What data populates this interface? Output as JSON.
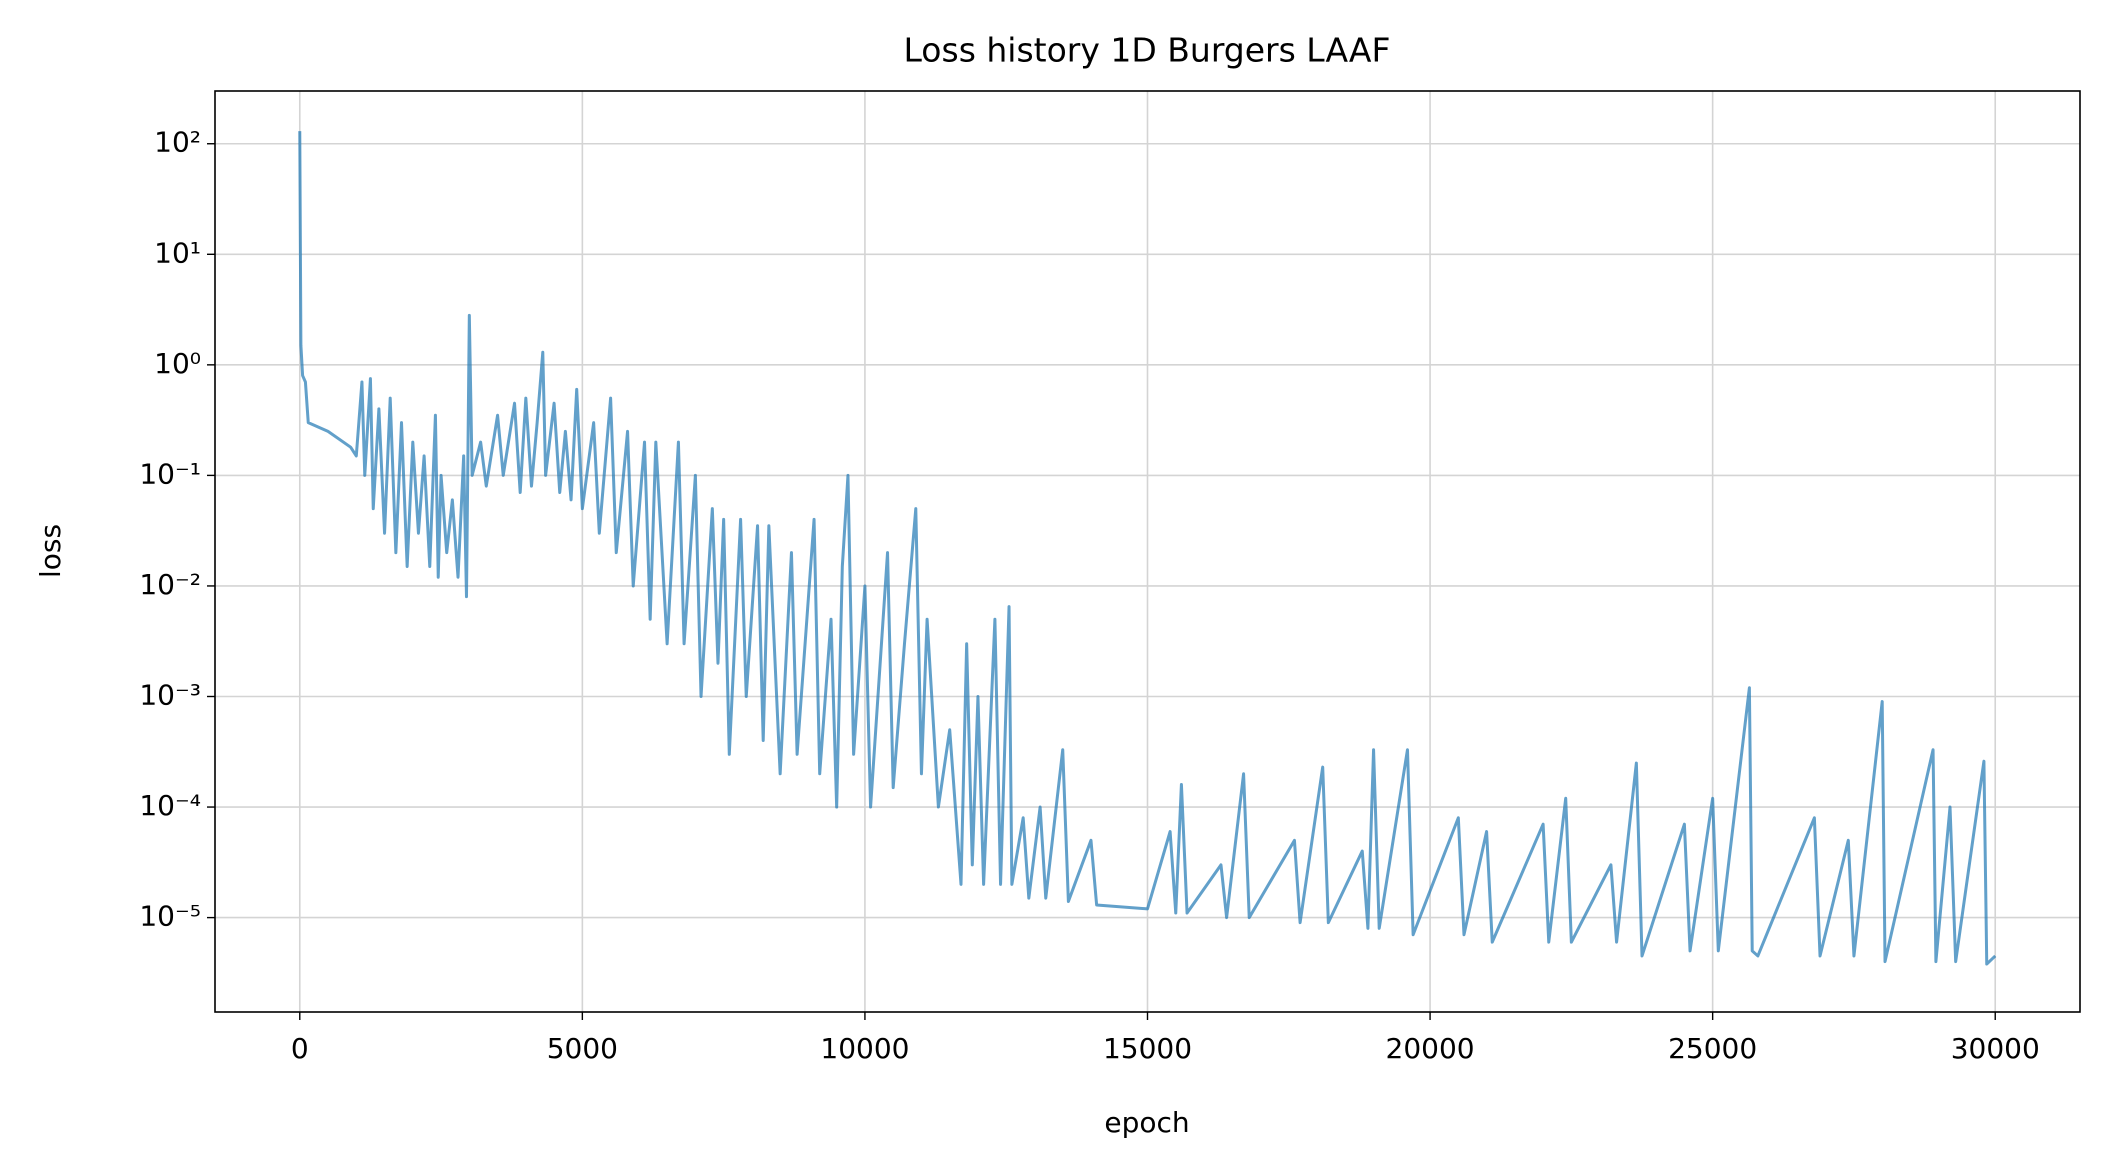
{
  "chart_data": {
    "type": "line",
    "title": "Loss history 1D Burgers LAAF",
    "x_label": "epoch",
    "y_label": "loss",
    "x": [
      0,
      20,
      50,
      100,
      150,
      500,
      900,
      1000,
      1100,
      1150,
      1250,
      1300,
      1400,
      1500,
      1600,
      1700,
      1800,
      1900,
      2000,
      2100,
      2200,
      2300,
      2400,
      2450,
      2500,
      2600,
      2700,
      2800,
      2900,
      2950,
      3000,
      3050,
      3200,
      3300,
      3500,
      3600,
      3800,
      3900,
      4000,
      4100,
      4200,
      4300,
      4350,
      4500,
      4600,
      4700,
      4800,
      4900,
      5000,
      5200,
      5300,
      5500,
      5600,
      5800,
      5900,
      6100,
      6200,
      6300,
      6500,
      6700,
      6800,
      7000,
      7100,
      7300,
      7400,
      7500,
      7600,
      7800,
      7900,
      8100,
      8200,
      8300,
      8500,
      8700,
      8800,
      9100,
      9200,
      9400,
      9500,
      9600,
      9700,
      9800,
      10000,
      10100,
      10400,
      10500,
      10700,
      10900,
      11000,
      11100,
      11300,
      11500,
      11700,
      11800,
      11900,
      12000,
      12100,
      12300,
      12400,
      12550,
      12600,
      12800,
      12900,
      13100,
      13200,
      13500,
      13600,
      14000,
      14100,
      15000,
      15400,
      15500,
      15600,
      15700,
      16300,
      16400,
      16700,
      16800,
      17600,
      17700,
      18100,
      18200,
      18800,
      18900,
      19000,
      19100,
      19600,
      19700,
      20500,
      20600,
      21000,
      21100,
      22000,
      22100,
      22400,
      22500,
      23200,
      23300,
      23650,
      23750,
      24500,
      24600,
      25000,
      25100,
      25650,
      25700,
      25800,
      26800,
      26900,
      27400,
      27500,
      28000,
      28050,
      28900,
      28950,
      29200,
      29300,
      29800,
      29850,
      30000
    ],
    "values": [
      130,
      1.5,
      0.8,
      0.7,
      0.3,
      0.25,
      0.18,
      0.15,
      0.7,
      0.1,
      0.75,
      0.05,
      0.4,
      0.03,
      0.5,
      0.02,
      0.3,
      0.015,
      0.2,
      0.03,
      0.15,
      0.015,
      0.35,
      0.012,
      0.1,
      0.02,
      0.06,
      0.012,
      0.15,
      0.008,
      2.8,
      0.1,
      0.2,
      0.08,
      0.35,
      0.1,
      0.45,
      0.07,
      0.5,
      0.08,
      0.3,
      1.3,
      0.1,
      0.45,
      0.07,
      0.25,
      0.06,
      0.6,
      0.05,
      0.3,
      0.03,
      0.5,
      0.02,
      0.25,
      0.01,
      0.2,
      0.005,
      0.2,
      0.003,
      0.2,
      0.003,
      0.1,
      0.001,
      0.05,
      0.002,
      0.04,
      0.0003,
      0.04,
      0.001,
      0.035,
      0.0004,
      0.035,
      0.0002,
      0.02,
      0.0003,
      0.04,
      0.0002,
      0.005,
      0.0001,
      0.015,
      0.1,
      0.0003,
      0.01,
      0.0001,
      0.02,
      0.00015,
      0.003,
      0.05,
      0.0002,
      0.005,
      0.0001,
      0.0005,
      2e-05,
      0.003,
      3e-05,
      0.001,
      2e-05,
      0.005,
      2e-05,
      0.0065,
      2e-05,
      8e-05,
      1.5e-05,
      0.0001,
      1.5e-05,
      0.00033,
      1.4e-05,
      5e-05,
      1.3e-05,
      1.2e-05,
      6e-05,
      1.1e-05,
      0.00016,
      1.1e-05,
      3e-05,
      1e-05,
      0.0002,
      1e-05,
      5e-05,
      9e-06,
      0.00023,
      9e-06,
      4e-05,
      8e-06,
      0.00033,
      8e-06,
      0.00033,
      7e-06,
      8e-05,
      7e-06,
      6e-05,
      6e-06,
      7e-05,
      6e-06,
      0.00012,
      6e-06,
      3e-05,
      6e-06,
      0.00025,
      4.5e-06,
      7e-05,
      5e-06,
      0.00012,
      5e-06,
      0.0012,
      5e-06,
      4.5e-06,
      8e-05,
      4.5e-06,
      5e-05,
      4.5e-06,
      0.0009,
      4e-06,
      0.00033,
      4e-06,
      0.0001,
      4e-06,
      0.00026,
      3.8e-06,
      4.5e-06
    ],
    "color": "#1f77b4",
    "log_y": true,
    "grid": true,
    "xlim": [
      -1500,
      31500
    ],
    "xticks": [
      0,
      5000,
      10000,
      15000,
      20000,
      25000,
      30000
    ],
    "ylim": [
      1.4e-06,
      300
    ],
    "yticks": [
      {
        "value": 1e-05,
        "label": "10⁻⁵"
      },
      {
        "value": 0.0001,
        "label": "10⁻⁴"
      },
      {
        "value": 0.001,
        "label": "10⁻³"
      },
      {
        "value": 0.01,
        "label": "10⁻²"
      },
      {
        "value": 0.1,
        "label": "10⁻¹"
      },
      {
        "value": 1,
        "label": "10⁰"
      },
      {
        "value": 10,
        "label": "10¹"
      },
      {
        "value": 100,
        "label": "10²"
      }
    ]
  }
}
